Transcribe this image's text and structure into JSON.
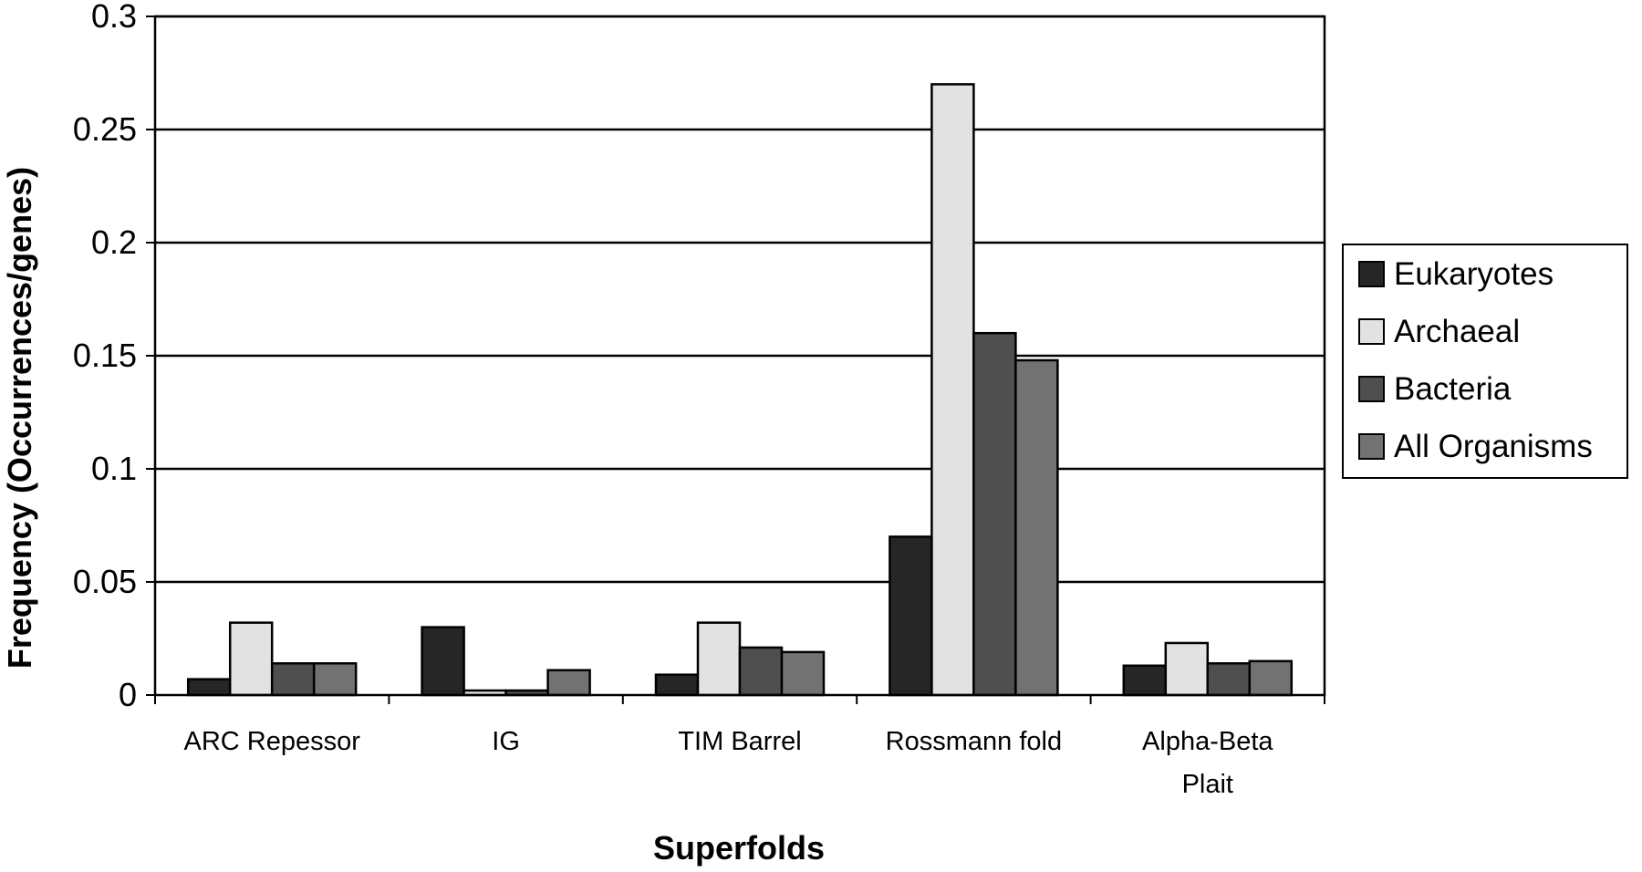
{
  "chart_data": {
    "type": "bar",
    "title": "",
    "xlabel": "Superfolds",
    "ylabel": "Frequency (Occurrences/genes)",
    "ylim": [
      0,
      0.3
    ],
    "yticks": [
      "0",
      "0.05",
      "0.1",
      "0.15",
      "0.2",
      "0.25",
      "0.3"
    ],
    "grid": true,
    "legend_position": "right",
    "categories": [
      [
        "ARC Repessor"
      ],
      [
        "IG"
      ],
      [
        "TIM Barrel"
      ],
      [
        "Rossmann fold"
      ],
      [
        "Alpha-Beta",
        "Plait"
      ]
    ],
    "series": [
      {
        "name": "Eukaryotes",
        "color": "#262626",
        "values": [
          0.007,
          0.03,
          0.009,
          0.07,
          0.013
        ]
      },
      {
        "name": "Archaeal",
        "color": "#e2e2e2",
        "values": [
          0.032,
          0.002,
          0.032,
          0.27,
          0.023
        ]
      },
      {
        "name": "Bacteria",
        "color": "#4f4f4f",
        "values": [
          0.014,
          0.002,
          0.021,
          0.16,
          0.014
        ]
      },
      {
        "name": "All Organisms",
        "color": "#727272",
        "values": [
          0.014,
          0.011,
          0.019,
          0.148,
          0.015
        ]
      }
    ]
  }
}
